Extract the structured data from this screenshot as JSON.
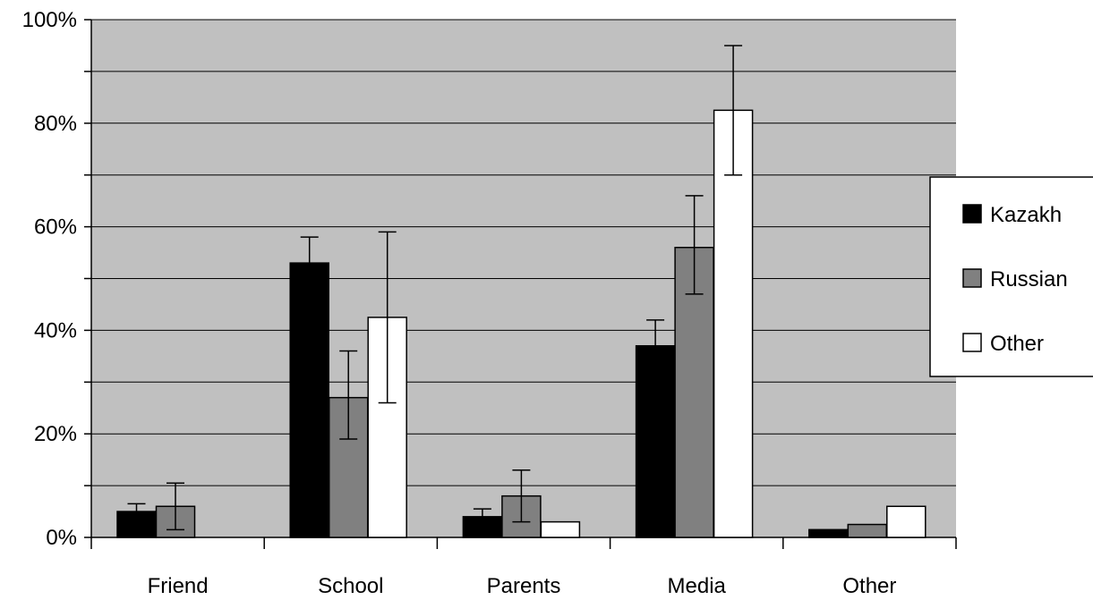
{
  "chart_data": {
    "type": "bar",
    "categories": [
      "Friend",
      "School",
      "Parents",
      "Media",
      "Other"
    ],
    "series": [
      {
        "name": "Kazakh",
        "color": "#000000",
        "values": [
          5,
          53,
          4,
          37,
          1.5
        ],
        "error": [
          [
            3.5,
            6.5
          ],
          [
            48,
            58
          ],
          [
            2.5,
            5.5
          ],
          [
            32,
            42
          ],
          null
        ]
      },
      {
        "name": "Russian",
        "color": "#808080",
        "values": [
          6,
          27,
          8,
          56,
          2.5
        ],
        "error": [
          [
            1.5,
            10.5
          ],
          [
            19,
            36
          ],
          [
            3,
            13
          ],
          [
            47,
            66
          ],
          null
        ]
      },
      {
        "name": "Other",
        "color": "#ffffff",
        "values": [
          0,
          42.5,
          3,
          82.5,
          6
        ],
        "error": [
          null,
          [
            26,
            59
          ],
          null,
          [
            70,
            95
          ],
          null
        ]
      }
    ],
    "ylim": [
      0,
      100
    ],
    "yticks": [
      "0%",
      "20%",
      "40%",
      "60%",
      "80%",
      "100%"
    ],
    "ytick_values": [
      0,
      20,
      40,
      60,
      80,
      100
    ],
    "grid": true,
    "plot_background": "#c0c0c0",
    "legend_position": "right"
  }
}
